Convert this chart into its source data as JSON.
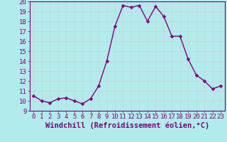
{
  "x": [
    0,
    1,
    2,
    3,
    4,
    5,
    6,
    7,
    8,
    9,
    10,
    11,
    12,
    13,
    14,
    15,
    16,
    17,
    18,
    19,
    20,
    21,
    22,
    23
  ],
  "y": [
    10.5,
    10.0,
    9.8,
    10.2,
    10.3,
    10.0,
    9.7,
    10.2,
    11.5,
    14.0,
    17.5,
    19.6,
    19.4,
    19.6,
    18.0,
    19.5,
    18.5,
    16.5,
    16.5,
    14.2,
    12.6,
    12.0,
    11.2,
    11.5
  ],
  "line_color": "#800080",
  "marker_color": "#800080",
  "bg_color": "#b2ebeb",
  "grid_color": "#d0d0d0",
  "xlabel": "Windchill (Refroidissement éolien,°C)",
  "xlabel_color": "#800080",
  "tick_color": "#800080",
  "ylim": [
    9,
    20
  ],
  "xlim": [
    -0.5,
    23.5
  ],
  "yticks": [
    9,
    10,
    11,
    12,
    13,
    14,
    15,
    16,
    17,
    18,
    19,
    20
  ],
  "xticks": [
    0,
    1,
    2,
    3,
    4,
    5,
    6,
    7,
    8,
    9,
    10,
    11,
    12,
    13,
    14,
    15,
    16,
    17,
    18,
    19,
    20,
    21,
    22,
    23
  ],
  "marker_size": 2.5,
  "line_width": 1.0,
  "tick_fontsize": 6.5,
  "xlabel_fontsize": 7.5
}
